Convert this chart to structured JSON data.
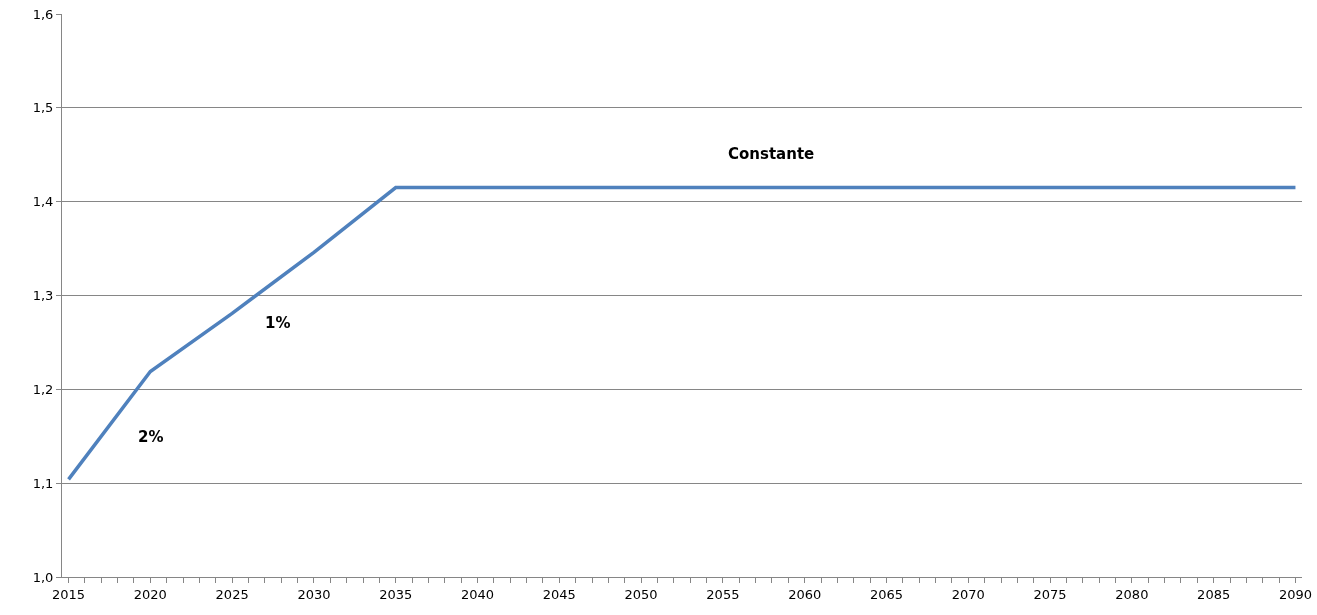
{
  "chart_data": {
    "type": "line",
    "x": [
      2015,
      2020,
      2025,
      2030,
      2035,
      2090
    ],
    "series": [
      {
        "color": "#4f81bd",
        "values": [
          1.104,
          1.219,
          1.281,
          1.346,
          1.415,
          1.415
        ]
      }
    ],
    "xlim": [
      2014.6,
      2090.4
    ],
    "xticks": [
      2015,
      {
        "value": 2016,
        "label": null
      },
      {
        "value": 2017,
        "label": null
      },
      {
        "value": 2018,
        "label": null
      },
      {
        "value": 2019,
        "label": null
      },
      2020,
      {
        "value": 2021,
        "label": null
      },
      {
        "value": 2022,
        "label": null
      },
      {
        "value": 2023,
        "label": null
      },
      {
        "value": 2024,
        "label": null
      },
      2025,
      {
        "value": 2026,
        "label": null
      },
      {
        "value": 2027,
        "label": null
      },
      {
        "value": 2028,
        "label": null
      },
      {
        "value": 2029,
        "label": null
      },
      2030,
      {
        "value": 2031,
        "label": null
      },
      {
        "value": 2032,
        "label": null
      },
      {
        "value": 2033,
        "label": null
      },
      {
        "value": 2034,
        "label": null
      },
      2035,
      {
        "value": 2036,
        "label": null
      },
      {
        "value": 2037,
        "label": null
      },
      {
        "value": 2038,
        "label": null
      },
      {
        "value": 2039,
        "label": null
      },
      2040,
      {
        "value": 2041,
        "label": null
      },
      {
        "value": 2042,
        "label": null
      },
      {
        "value": 2043,
        "label": null
      },
      {
        "value": 2044,
        "label": null
      },
      2045,
      {
        "value": 2046,
        "label": null
      },
      {
        "value": 2047,
        "label": null
      },
      {
        "value": 2048,
        "label": null
      },
      {
        "value": 2049,
        "label": null
      },
      2050,
      {
        "value": 2051,
        "label": null
      },
      {
        "value": 2052,
        "label": null
      },
      {
        "value": 2053,
        "label": null
      },
      {
        "value": 2054,
        "label": null
      },
      2055,
      {
        "value": 2056,
        "label": null
      },
      {
        "value": 2057,
        "label": null
      },
      {
        "value": 2058,
        "label": null
      },
      {
        "value": 2059,
        "label": null
      },
      2060,
      {
        "value": 2061,
        "label": null
      },
      {
        "value": 2062,
        "label": null
      },
      {
        "value": 2063,
        "label": null
      },
      {
        "value": 2064,
        "label": null
      },
      2065,
      {
        "value": 2066,
        "label": null
      },
      {
        "value": 2067,
        "label": null
      },
      {
        "value": 2068,
        "label": null
      },
      {
        "value": 2069,
        "label": null
      },
      2070,
      {
        "value": 2071,
        "label": null
      },
      {
        "value": 2072,
        "label": null
      },
      {
        "value": 2073,
        "label": null
      },
      {
        "value": 2074,
        "label": null
      },
      2075,
      {
        "value": 2076,
        "label": null
      },
      {
        "value": 2077,
        "label": null
      },
      {
        "value": 2078,
        "label": null
      },
      {
        "value": 2079,
        "label": null
      },
      2080,
      {
        "value": 2081,
        "label": null
      },
      {
        "value": 2082,
        "label": null
      },
      {
        "value": 2083,
        "label": null
      },
      {
        "value": 2084,
        "label": null
      },
      2085,
      {
        "value": 2086,
        "label": null
      },
      {
        "value": 2087,
        "label": null
      },
      {
        "value": 2088,
        "label": null
      },
      {
        "value": 2089,
        "label": null
      },
      2090
    ],
    "ylim": [
      1.0,
      1.6
    ],
    "yticks": [
      {
        "value": 1.0,
        "label": "1,0"
      },
      {
        "value": 1.1,
        "label": "1,1"
      },
      {
        "value": 1.2,
        "label": "1,2"
      },
      {
        "value": 1.3,
        "label": "1,3"
      },
      {
        "value": 1.4,
        "label": "1,4"
      },
      {
        "value": 1.5,
        "label": "1,5"
      },
      {
        "value": 1.6,
        "label": "1,6"
      }
    ],
    "grid": "y",
    "marker": "none",
    "line_style": "solid",
    "annotations": [
      "2%",
      "1%",
      "Constante"
    ]
  }
}
